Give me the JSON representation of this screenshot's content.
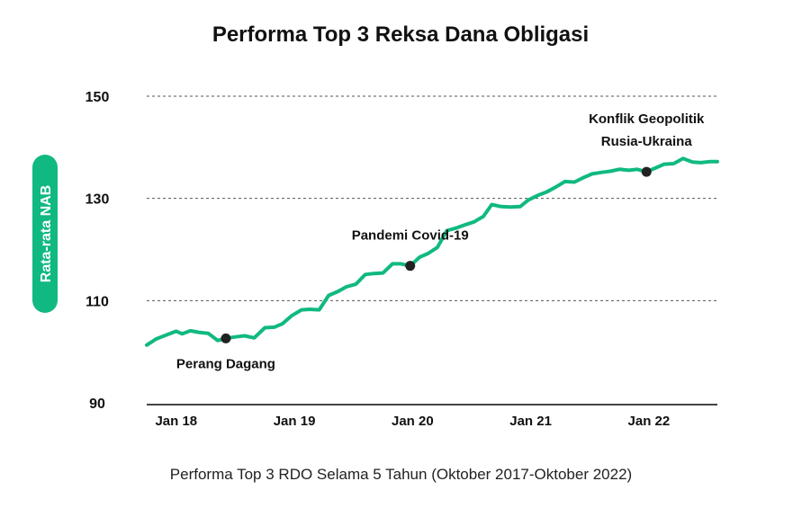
{
  "chart_data": {
    "type": "line",
    "title": "Performa Top 3 Reksa Dana Obligasi",
    "ylabel": "Rata-rata NAB",
    "xlabel": "",
    "ylim": [
      90,
      150
    ],
    "yticks": [
      90,
      110,
      130,
      150
    ],
    "grid": true,
    "x_ticks": [
      {
        "label": "Jan 18",
        "t": 0.25
      },
      {
        "label": "Jan 19",
        "t": 1.25
      },
      {
        "label": "Jan 20",
        "t": 2.25
      },
      {
        "label": "Jan 21",
        "t": 3.25
      },
      {
        "label": "Jan 22",
        "t": 4.25
      }
    ],
    "series": [
      {
        "name": "Rata-rata NAB",
        "color": "#10b981",
        "x": [
          0.0,
          0.08,
          0.17,
          0.25,
          0.3,
          0.37,
          0.44,
          0.52,
          0.6,
          0.67,
          0.75,
          0.83,
          0.91,
          1.0,
          1.08,
          1.15,
          1.23,
          1.31,
          1.38,
          1.46,
          1.54,
          1.62,
          1.69,
          1.77,
          1.85,
          1.92,
          2.0,
          2.08,
          2.15,
          2.23,
          2.31,
          2.38,
          2.46,
          2.54,
          2.62,
          2.69,
          2.77,
          2.85,
          2.92,
          3.0,
          3.08,
          3.16,
          3.23,
          3.31,
          3.38,
          3.46,
          3.54,
          3.62,
          3.69,
          3.77,
          3.85,
          3.92,
          4.0,
          4.08,
          4.15,
          4.23,
          4.31,
          4.38,
          4.46,
          4.54,
          4.62,
          4.69,
          4.77,
          4.83
        ],
        "values": [
          101.3,
          102.5,
          103.3,
          104.0,
          103.5,
          104.1,
          103.8,
          103.6,
          102.2,
          102.6,
          102.9,
          103.1,
          102.7,
          104.7,
          104.8,
          105.5,
          107.1,
          108.2,
          108.3,
          108.2,
          111.0,
          111.8,
          112.7,
          113.2,
          115.1,
          115.3,
          115.4,
          117.2,
          117.2,
          116.8,
          118.5,
          119.2,
          120.4,
          123.7,
          124.2,
          124.8,
          125.4,
          126.5,
          128.8,
          128.4,
          128.3,
          128.4,
          129.7,
          130.6,
          131.2,
          132.2,
          133.3,
          133.2,
          134.0,
          134.8,
          135.1,
          135.3,
          135.7,
          135.5,
          135.7,
          135.2,
          136.0,
          136.7,
          136.8,
          137.8,
          137.1,
          137.0,
          137.2,
          137.2
        ]
      }
    ],
    "annotations": [
      {
        "text": "Perang Dagang",
        "x": 0.67,
        "y": 102.6
      },
      {
        "text": "Pandemi Covid-19",
        "x": 2.23,
        "y": 116.8
      },
      {
        "text_lines": [
          "Konflik Geopolitik",
          "Rusia-Ukraina"
        ],
        "x": 4.23,
        "y": 135.2
      }
    ]
  },
  "caption": "Performa Top 3 RDO Selama 5 Tahun (Oktober 2017-Oktober 2022)",
  "colors": {
    "line": "#10b981",
    "marker": "#222222",
    "badge": "#10b981",
    "grid": "#555555",
    "text": "#111111"
  }
}
